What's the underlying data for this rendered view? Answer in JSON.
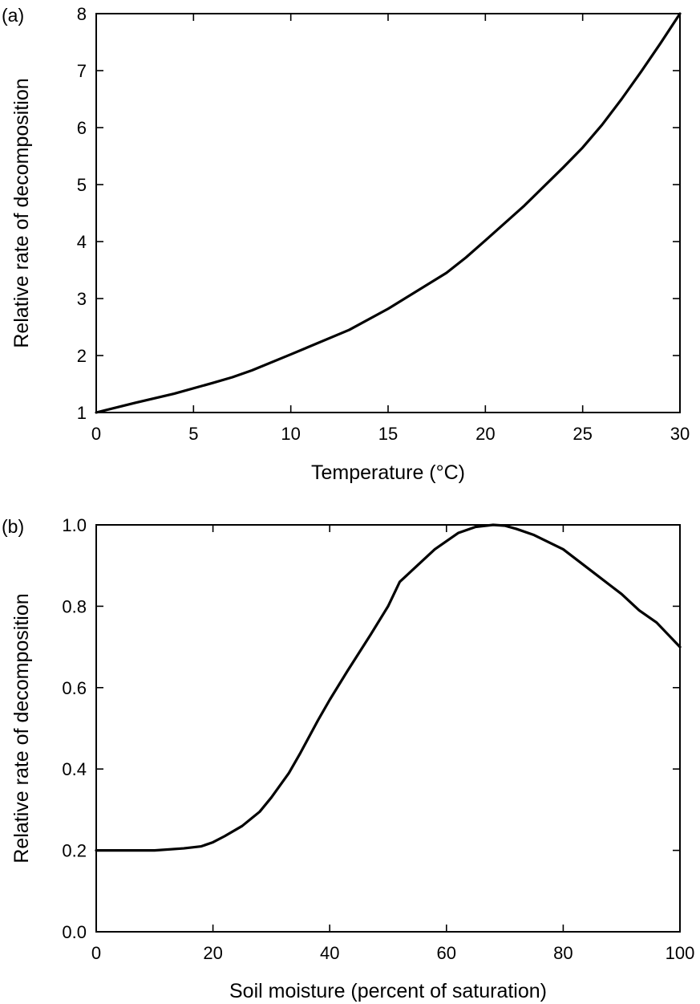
{
  "chart_data": [
    {
      "type": "line",
      "panel_label": "(a)",
      "title": "",
      "xlabel": "Temperature (°C)",
      "ylabel": "Relative rate of decomposition",
      "xlim": [
        0,
        30
      ],
      "ylim": [
        1,
        8
      ],
      "xticks": [
        "0",
        "5",
        "10",
        "15",
        "20",
        "25",
        "30"
      ],
      "yticks": [
        "1",
        "2",
        "3",
        "4",
        "5",
        "6",
        "7",
        "8"
      ],
      "grid": false,
      "series": [
        {
          "x": [
            0,
            2,
            4,
            6,
            7,
            8,
            10,
            13,
            15,
            18,
            19,
            20,
            22,
            24,
            25,
            26,
            27,
            28,
            29,
            30
          ],
          "y": [
            1.0,
            1.17,
            1.33,
            1.52,
            1.62,
            1.74,
            2.02,
            2.45,
            2.82,
            3.45,
            3.72,
            4.02,
            4.63,
            5.3,
            5.65,
            6.05,
            6.5,
            6.98,
            7.48,
            8.0
          ]
        }
      ]
    },
    {
      "type": "line",
      "panel_label": "(b)",
      "title": "",
      "xlabel": "Soil moisture (percent of saturation)",
      "ylabel": "Relative rate of decomposition",
      "xlim": [
        0,
        100
      ],
      "ylim": [
        0,
        1
      ],
      "xticks": [
        "0",
        "20",
        "40",
        "60",
        "80",
        "100"
      ],
      "yticks": [
        "0.0",
        "0.2",
        "0.4",
        "0.6",
        "0.8",
        "1.0"
      ],
      "grid": false,
      "series": [
        {
          "x": [
            0,
            10,
            15,
            18,
            20,
            22,
            25,
            28,
            30,
            33,
            35,
            38,
            40,
            43,
            47,
            50,
            52,
            55,
            58,
            60,
            62,
            65,
            68,
            70,
            72,
            75,
            80,
            85,
            90,
            93,
            96,
            100
          ],
          "y": [
            0.2,
            0.2,
            0.205,
            0.21,
            0.22,
            0.235,
            0.26,
            0.295,
            0.33,
            0.39,
            0.44,
            0.52,
            0.57,
            0.64,
            0.73,
            0.8,
            0.86,
            0.9,
            0.94,
            0.96,
            0.98,
            0.995,
            1.0,
            0.998,
            0.99,
            0.975,
            0.94,
            0.885,
            0.83,
            0.79,
            0.76,
            0.7
          ]
        }
      ]
    }
  ]
}
